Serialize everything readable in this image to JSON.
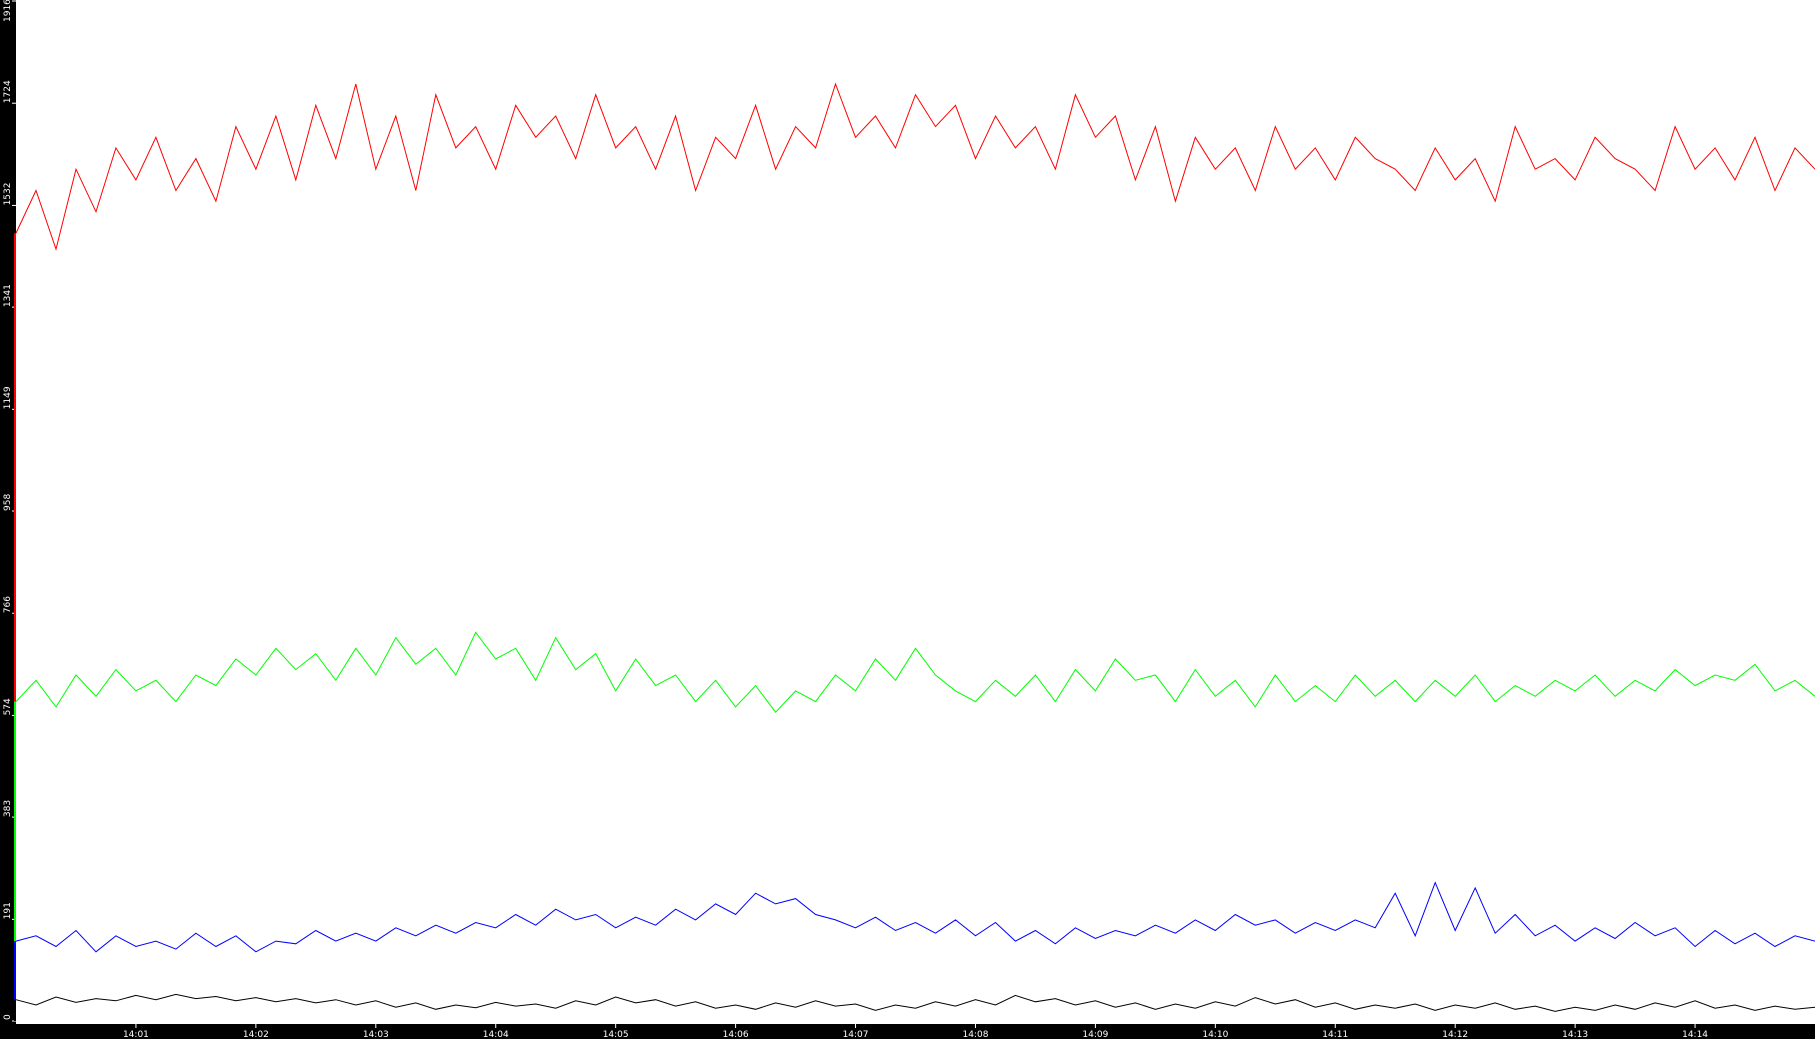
{
  "chart_data": {
    "type": "line",
    "title": "",
    "xlabel": "",
    "ylabel": "",
    "ylim": [
      0,
      1916
    ],
    "y_ticks": [
      "0",
      "191",
      "383",
      "574",
      "766",
      "958",
      "1149",
      "1341",
      "1532",
      "1724",
      "1916"
    ],
    "x_range": [
      "14:00:00",
      "14:15:00"
    ],
    "x_ticks": [
      "14:01",
      "14:02",
      "14:03",
      "14:04",
      "14:05",
      "14:06",
      "14:07",
      "14:08",
      "14:09",
      "14:10",
      "14:11",
      "14:12",
      "14:13",
      "14:14"
    ],
    "sample_interval_seconds": 10,
    "grid": false,
    "legend": "none",
    "background": "#ffffff",
    "axis_background": "#000000",
    "series": [
      {
        "color": "#ff0000",
        "values": [
          1480,
          1560,
          1450,
          1600,
          1520,
          1640,
          1580,
          1660,
          1560,
          1620,
          1540,
          1680,
          1600,
          1700,
          1580,
          1720,
          1620,
          1760,
          1600,
          1700,
          1560,
          1740,
          1640,
          1680,
          1600,
          1720,
          1660,
          1700,
          1620,
          1740,
          1640,
          1680,
          1600,
          1700,
          1560,
          1660,
          1620,
          1720,
          1600,
          1680,
          1640,
          1760,
          1660,
          1700,
          1640,
          1740,
          1680,
          1720,
          1620,
          1700,
          1640,
          1680,
          1600,
          1740,
          1660,
          1700,
          1580,
          1680,
          1540,
          1660,
          1600,
          1640,
          1560,
          1680,
          1600,
          1640,
          1580,
          1660,
          1620,
          1600,
          1560,
          1640,
          1580,
          1620,
          1540,
          1680,
          1600,
          1620,
          1580,
          1660,
          1620,
          1600,
          1560,
          1680,
          1600,
          1640,
          1580,
          1660,
          1560,
          1640,
          1600
        ]
      },
      {
        "color": "#00ff00",
        "values": [
          600,
          640,
          590,
          650,
          610,
          660,
          620,
          640,
          600,
          650,
          630,
          680,
          650,
          700,
          660,
          690,
          640,
          700,
          650,
          720,
          670,
          700,
          650,
          730,
          680,
          700,
          640,
          720,
          660,
          690,
          620,
          680,
          630,
          650,
          600,
          640,
          590,
          630,
          580,
          620,
          600,
          650,
          620,
          680,
          640,
          700,
          650,
          620,
          600,
          640,
          610,
          650,
          600,
          660,
          620,
          680,
          640,
          650,
          600,
          660,
          610,
          640,
          590,
          650,
          600,
          630,
          600,
          650,
          610,
          640,
          600,
          640,
          610,
          650,
          600,
          630,
          610,
          640,
          620,
          650,
          610,
          640,
          620,
          660,
          630,
          650,
          640,
          670,
          620,
          640,
          610
        ]
      },
      {
        "color": "#0000ff",
        "values": [
          150,
          160,
          140,
          170,
          130,
          160,
          140,
          150,
          135,
          165,
          140,
          160,
          130,
          150,
          145,
          170,
          150,
          165,
          150,
          175,
          160,
          180,
          165,
          185,
          175,
          200,
          180,
          210,
          190,
          200,
          175,
          195,
          180,
          210,
          190,
          220,
          200,
          240,
          220,
          230,
          200,
          190,
          175,
          195,
          170,
          185,
          165,
          190,
          160,
          185,
          150,
          170,
          145,
          175,
          155,
          170,
          160,
          180,
          165,
          190,
          170,
          200,
          180,
          190,
          165,
          185,
          170,
          190,
          175,
          240,
          160,
          260,
          170,
          250,
          165,
          200,
          160,
          180,
          150,
          175,
          155,
          185,
          160,
          175,
          140,
          170,
          145,
          165,
          140,
          160,
          150
        ]
      },
      {
        "color": "#000000",
        "values": [
          40,
          30,
          45,
          35,
          42,
          38,
          48,
          40,
          50,
          42,
          46,
          38,
          44,
          36,
          42,
          34,
          40,
          30,
          38,
          26,
          34,
          22,
          30,
          25,
          35,
          28,
          32,
          24,
          38,
          30,
          45,
          34,
          40,
          28,
          36,
          24,
          30,
          22,
          34,
          26,
          38,
          28,
          32,
          20,
          30,
          24,
          36,
          28,
          40,
          30,
          48,
          36,
          42,
          30,
          38,
          26,
          34,
          22,
          32,
          24,
          36,
          28,
          44,
          32,
          40,
          26,
          34,
          22,
          30,
          24,
          32,
          20,
          30,
          24,
          34,
          22,
          28,
          18,
          26,
          20,
          30,
          22,
          34,
          26,
          38,
          24,
          30,
          20,
          28,
          22,
          26
        ]
      }
    ]
  }
}
